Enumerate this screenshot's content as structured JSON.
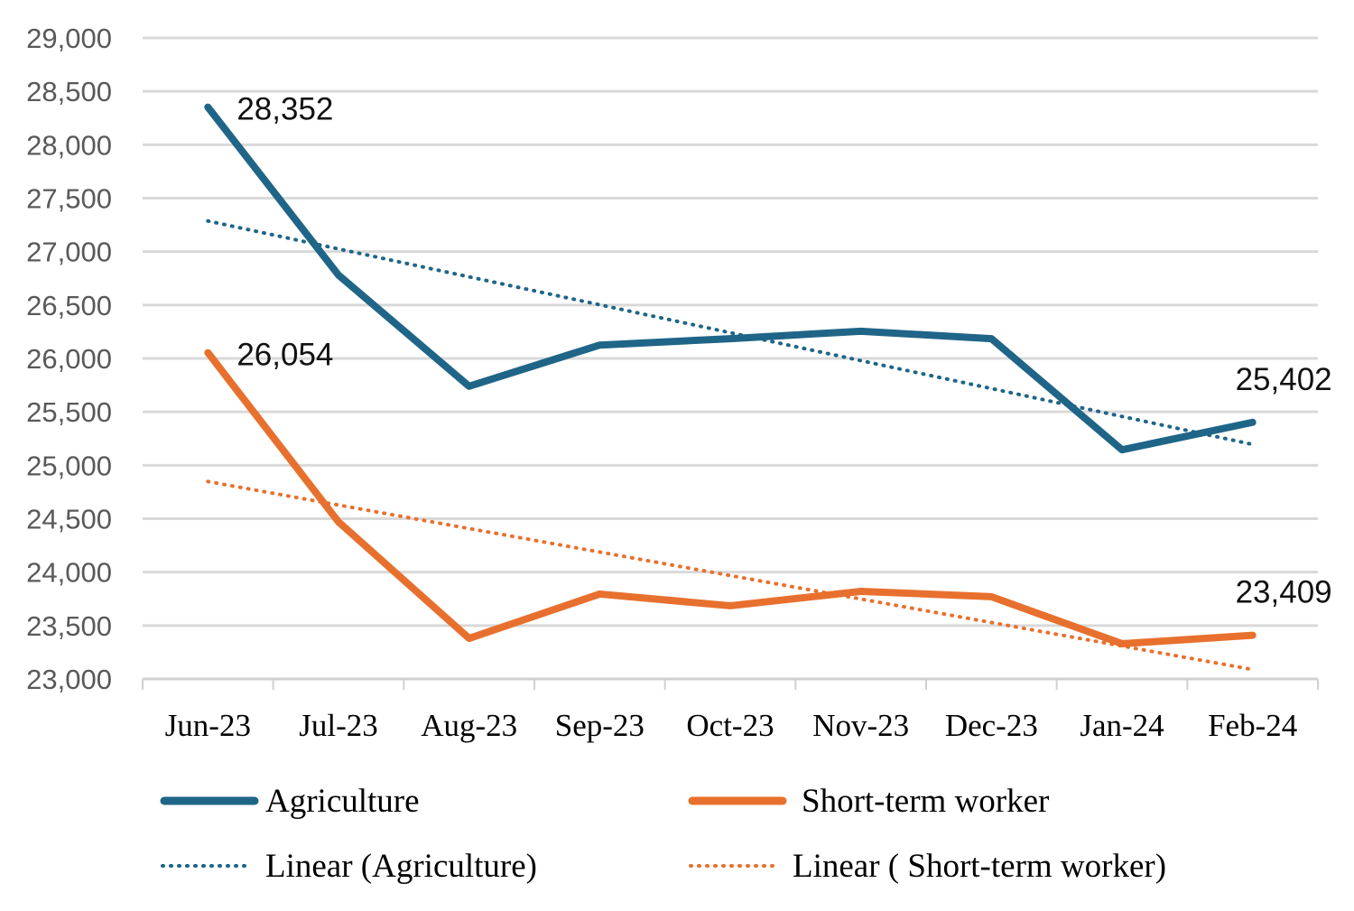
{
  "chart_data": {
    "type": "line",
    "title": "",
    "xlabel": "",
    "ylabel": "",
    "ylim": [
      23000,
      29000
    ],
    "ytick_step": 500,
    "ytick_labels": [
      "23,000",
      "23,500",
      "24,000",
      "24,500",
      "25,000",
      "25,500",
      "26,000",
      "26,500",
      "27,000",
      "27,500",
      "28,000",
      "28,500",
      "29,000"
    ],
    "grid": true,
    "legend_position": "bottom",
    "categories": [
      "Jun-23",
      "Jul-23",
      "Aug-23",
      "Sep-23",
      "Oct-23",
      "Nov-23",
      "Dec-23",
      "Jan-24",
      "Feb-24"
    ],
    "series": [
      {
        "name": "Agriculture",
        "color": "#1f6587",
        "values": [
          28352,
          26780,
          25740,
          26125,
          26185,
          26255,
          26185,
          25145,
          25402
        ],
        "data_labels": {
          "0": "28,352",
          "8": "25,402"
        },
        "trendline": {
          "name": "Linear (Agriculture)",
          "type": "linear"
        }
      },
      {
        "name": "Short-term worker",
        "color": "#e8702e",
        "values": [
          26054,
          24470,
          23380,
          23795,
          23685,
          23820,
          23770,
          23330,
          23409
        ],
        "data_labels": {
          "0": "26,054",
          "8": "23,409"
        },
        "trendline": {
          "name": "Linear ( Short-term worker)",
          "type": "linear"
        }
      }
    ]
  }
}
